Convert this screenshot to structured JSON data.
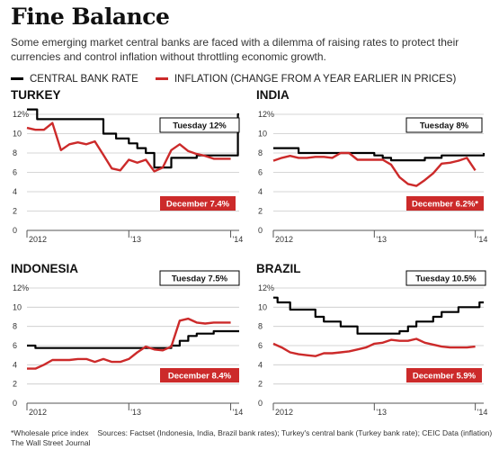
{
  "header": {
    "title": "Fine Balance",
    "subtitle": "Some emerging market central banks are faced with a dilemma of raising rates to protect their currencies and control inflation without throttling economic growth."
  },
  "legend": [
    {
      "label": "CENTRAL BANK RATE",
      "color": "#000000"
    },
    {
      "label": "INFLATION (CHANGE FROM A YEAR EARLIER IN PRICES)",
      "color": "#cc2a2a"
    }
  ],
  "footnote": {
    "note": "*Wholesale price index",
    "sources": "Sources: Factset (Indonesia, India, Brazil bank rates); Turkey's central bank (Turkey bank rate); CEIC Data (inflation)",
    "publisher": "The Wall Street Journal"
  },
  "colors": {
    "rate": "#000000",
    "inflation": "#cc2a2a",
    "grid": "#c8c8c8"
  },
  "chart_data": [
    {
      "type": "line",
      "title": "TURKEY",
      "ylim": [
        0,
        12
      ],
      "yticks": [
        "0",
        "2",
        "4",
        "6",
        "8",
        "10",
        "12%"
      ],
      "xlim": [
        0,
        25
      ],
      "xticks": [
        {
          "x": 0,
          "label": "2012"
        },
        {
          "x": 12,
          "label": "'13"
        },
        {
          "x": 24,
          "label": "'14"
        }
      ],
      "grid": true,
      "annotations": {
        "rate": "Tuesday 12%",
        "inflation": "December 7.4%"
      },
      "series": [
        {
          "name": "CENTRAL BANK RATE",
          "role": "rate",
          "step": true,
          "x": [
            0,
            1,
            1.2,
            4,
            9,
            10.5,
            12,
            13,
            14,
            15,
            17,
            20,
            23,
            24.85,
            24.85,
            25
          ],
          "y": [
            12.5,
            12.5,
            11.5,
            11.5,
            10,
            9.5,
            9,
            8.5,
            8,
            6.5,
            7.5,
            7.75,
            7.75,
            7.75,
            12,
            12
          ]
        },
        {
          "name": "INFLATION (CHANGE FROM A YEAR EARLIER IN PRICES)",
          "role": "inflation",
          "step": false,
          "x": [
            0,
            1,
            2,
            3,
            4,
            5,
            6,
            7,
            8,
            9,
            10,
            11,
            12,
            13,
            14,
            15,
            16,
            17,
            18,
            19,
            20,
            21,
            22,
            23,
            24
          ],
          "y": [
            10.6,
            10.4,
            10.4,
            11.1,
            8.3,
            8.9,
            9.1,
            8.9,
            9.2,
            7.8,
            6.4,
            6.2,
            7.3,
            7.0,
            7.3,
            6.1,
            6.5,
            8.3,
            8.9,
            8.2,
            7.9,
            7.7,
            7.4,
            7.4,
            7.4
          ]
        }
      ]
    },
    {
      "type": "line",
      "title": "INDIA",
      "ylim": [
        0,
        12
      ],
      "yticks": [
        "0",
        "2",
        "4",
        "6",
        "8",
        "10",
        "12%"
      ],
      "xlim": [
        0,
        25
      ],
      "xticks": [
        {
          "x": 0,
          "label": "2012"
        },
        {
          "x": 12,
          "label": "'13"
        },
        {
          "x": 24,
          "label": "'14"
        }
      ],
      "grid": true,
      "annotations": {
        "rate": "Tuesday 8%",
        "inflation": "December 6.2%*"
      },
      "series": [
        {
          "name": "CENTRAL BANK RATE",
          "role": "rate",
          "step": true,
          "x": [
            0,
            3,
            12,
            13,
            14,
            17,
            18,
            20,
            25
          ],
          "y": [
            8.5,
            8,
            7.75,
            7.5,
            7.25,
            7.25,
            7.5,
            7.75,
            8
          ]
        },
        {
          "name": "INFLATION (CHANGE FROM A YEAR EARLIER IN PRICES)",
          "role": "inflation",
          "step": false,
          "x": [
            0,
            1,
            2,
            3,
            4,
            5,
            6,
            7,
            8,
            9,
            10,
            11,
            12,
            13,
            14,
            15,
            16,
            17,
            18,
            19,
            20,
            21,
            22,
            23,
            24
          ],
          "y": [
            7.2,
            7.5,
            7.7,
            7.5,
            7.5,
            7.6,
            7.6,
            7.5,
            8.0,
            8.0,
            7.3,
            7.3,
            7.3,
            7.3,
            6.8,
            5.5,
            4.8,
            4.6,
            5.2,
            5.9,
            6.9,
            7.0,
            7.2,
            7.5,
            6.2
          ]
        }
      ]
    },
    {
      "type": "line",
      "title": "INDONESIA",
      "ylim": [
        0,
        12
      ],
      "yticks": [
        "0",
        "2",
        "4",
        "6",
        "8",
        "10",
        "12%"
      ],
      "xlim": [
        0,
        25
      ],
      "xticks": [
        {
          "x": 0,
          "label": "2012"
        },
        {
          "x": 12,
          "label": "'13"
        },
        {
          "x": 24,
          "label": "'14"
        }
      ],
      "grid": true,
      "annotations": {
        "rate": "Tuesday 7.5%",
        "inflation": "December 8.4%"
      },
      "series": [
        {
          "name": "CENTRAL BANK RATE",
          "role": "rate",
          "step": true,
          "x": [
            0,
            1,
            17,
            18,
            19,
            20,
            22,
            25
          ],
          "y": [
            6,
            5.75,
            6,
            6.5,
            7,
            7.25,
            7.5,
            7.5
          ]
        },
        {
          "name": "INFLATION (CHANGE FROM A YEAR EARLIER IN PRICES)",
          "role": "inflation",
          "step": false,
          "x": [
            0,
            1,
            2,
            3,
            4,
            5,
            6,
            7,
            8,
            9,
            10,
            11,
            12,
            13,
            14,
            15,
            16,
            17,
            18,
            19,
            20,
            21,
            22,
            23,
            24
          ],
          "y": [
            3.6,
            3.6,
            4.0,
            4.5,
            4.5,
            4.5,
            4.6,
            4.6,
            4.3,
            4.6,
            4.3,
            4.3,
            4.6,
            5.3,
            5.9,
            5.6,
            5.5,
            5.9,
            8.6,
            8.8,
            8.4,
            8.3,
            8.4,
            8.4,
            8.4
          ]
        }
      ]
    },
    {
      "type": "line",
      "title": "BRAZIL",
      "ylim": [
        0,
        12
      ],
      "yticks": [
        "0",
        "2",
        "4",
        "6",
        "8",
        "10",
        "12%"
      ],
      "xlim": [
        0,
        25
      ],
      "xticks": [
        {
          "x": 0,
          "label": "2012"
        },
        {
          "x": 12,
          "label": "'13"
        },
        {
          "x": 24,
          "label": "'14"
        }
      ],
      "grid": true,
      "annotations": {
        "rate": "Tuesday 10.5%",
        "inflation": "December 5.9%"
      },
      "series": [
        {
          "name": "CENTRAL BANK RATE",
          "role": "rate",
          "step": true,
          "x": [
            0,
            0.5,
            2,
            3,
            5,
            6,
            8,
            10,
            15,
            16,
            17,
            19,
            20,
            22,
            23,
            24.5,
            25
          ],
          "y": [
            11,
            10.5,
            9.75,
            9.75,
            9,
            8.5,
            8,
            7.25,
            7.5,
            8,
            8.5,
            9,
            9.5,
            10,
            10,
            10.5,
            10.5
          ]
        },
        {
          "name": "INFLATION (CHANGE FROM A YEAR EARLIER IN PRICES)",
          "role": "inflation",
          "step": false,
          "x": [
            0,
            1,
            2,
            3,
            4,
            5,
            6,
            7,
            8,
            9,
            10,
            11,
            12,
            13,
            14,
            15,
            16,
            17,
            18,
            19,
            20,
            21,
            22,
            23,
            24
          ],
          "y": [
            6.2,
            5.8,
            5.3,
            5.1,
            5.0,
            4.9,
            5.2,
            5.2,
            5.3,
            5.4,
            5.6,
            5.8,
            6.2,
            6.3,
            6.6,
            6.5,
            6.5,
            6.7,
            6.3,
            6.1,
            5.9,
            5.8,
            5.8,
            5.8,
            5.9
          ]
        }
      ]
    }
  ]
}
